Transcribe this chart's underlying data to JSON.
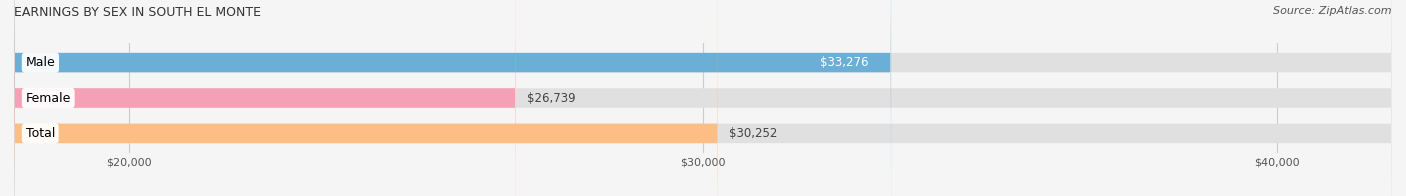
{
  "title": "EARNINGS BY SEX IN SOUTH EL MONTE",
  "source": "Source: ZipAtlas.com",
  "categories": [
    "Male",
    "Female",
    "Total"
  ],
  "values": [
    33276,
    26739,
    30252
  ],
  "bar_colors": [
    "#6baed6",
    "#f4a0b5",
    "#fdbe85"
  ],
  "label_colors": [
    "white",
    "#555555",
    "#555555"
  ],
  "value_labels": [
    "$33,276",
    "$26,739",
    "$30,252"
  ],
  "xlim": [
    18000,
    42000
  ],
  "xticks": [
    20000,
    30000,
    40000
  ],
  "xtick_labels": [
    "$20,000",
    "$30,000",
    "$40,000"
  ],
  "bg_bar_color": "#e8e8e8",
  "background_color": "#f5f5f5",
  "bar_height": 0.55,
  "title_fontsize": 9,
  "source_fontsize": 8,
  "label_fontsize": 9,
  "value_fontsize": 8.5,
  "tick_fontsize": 8
}
